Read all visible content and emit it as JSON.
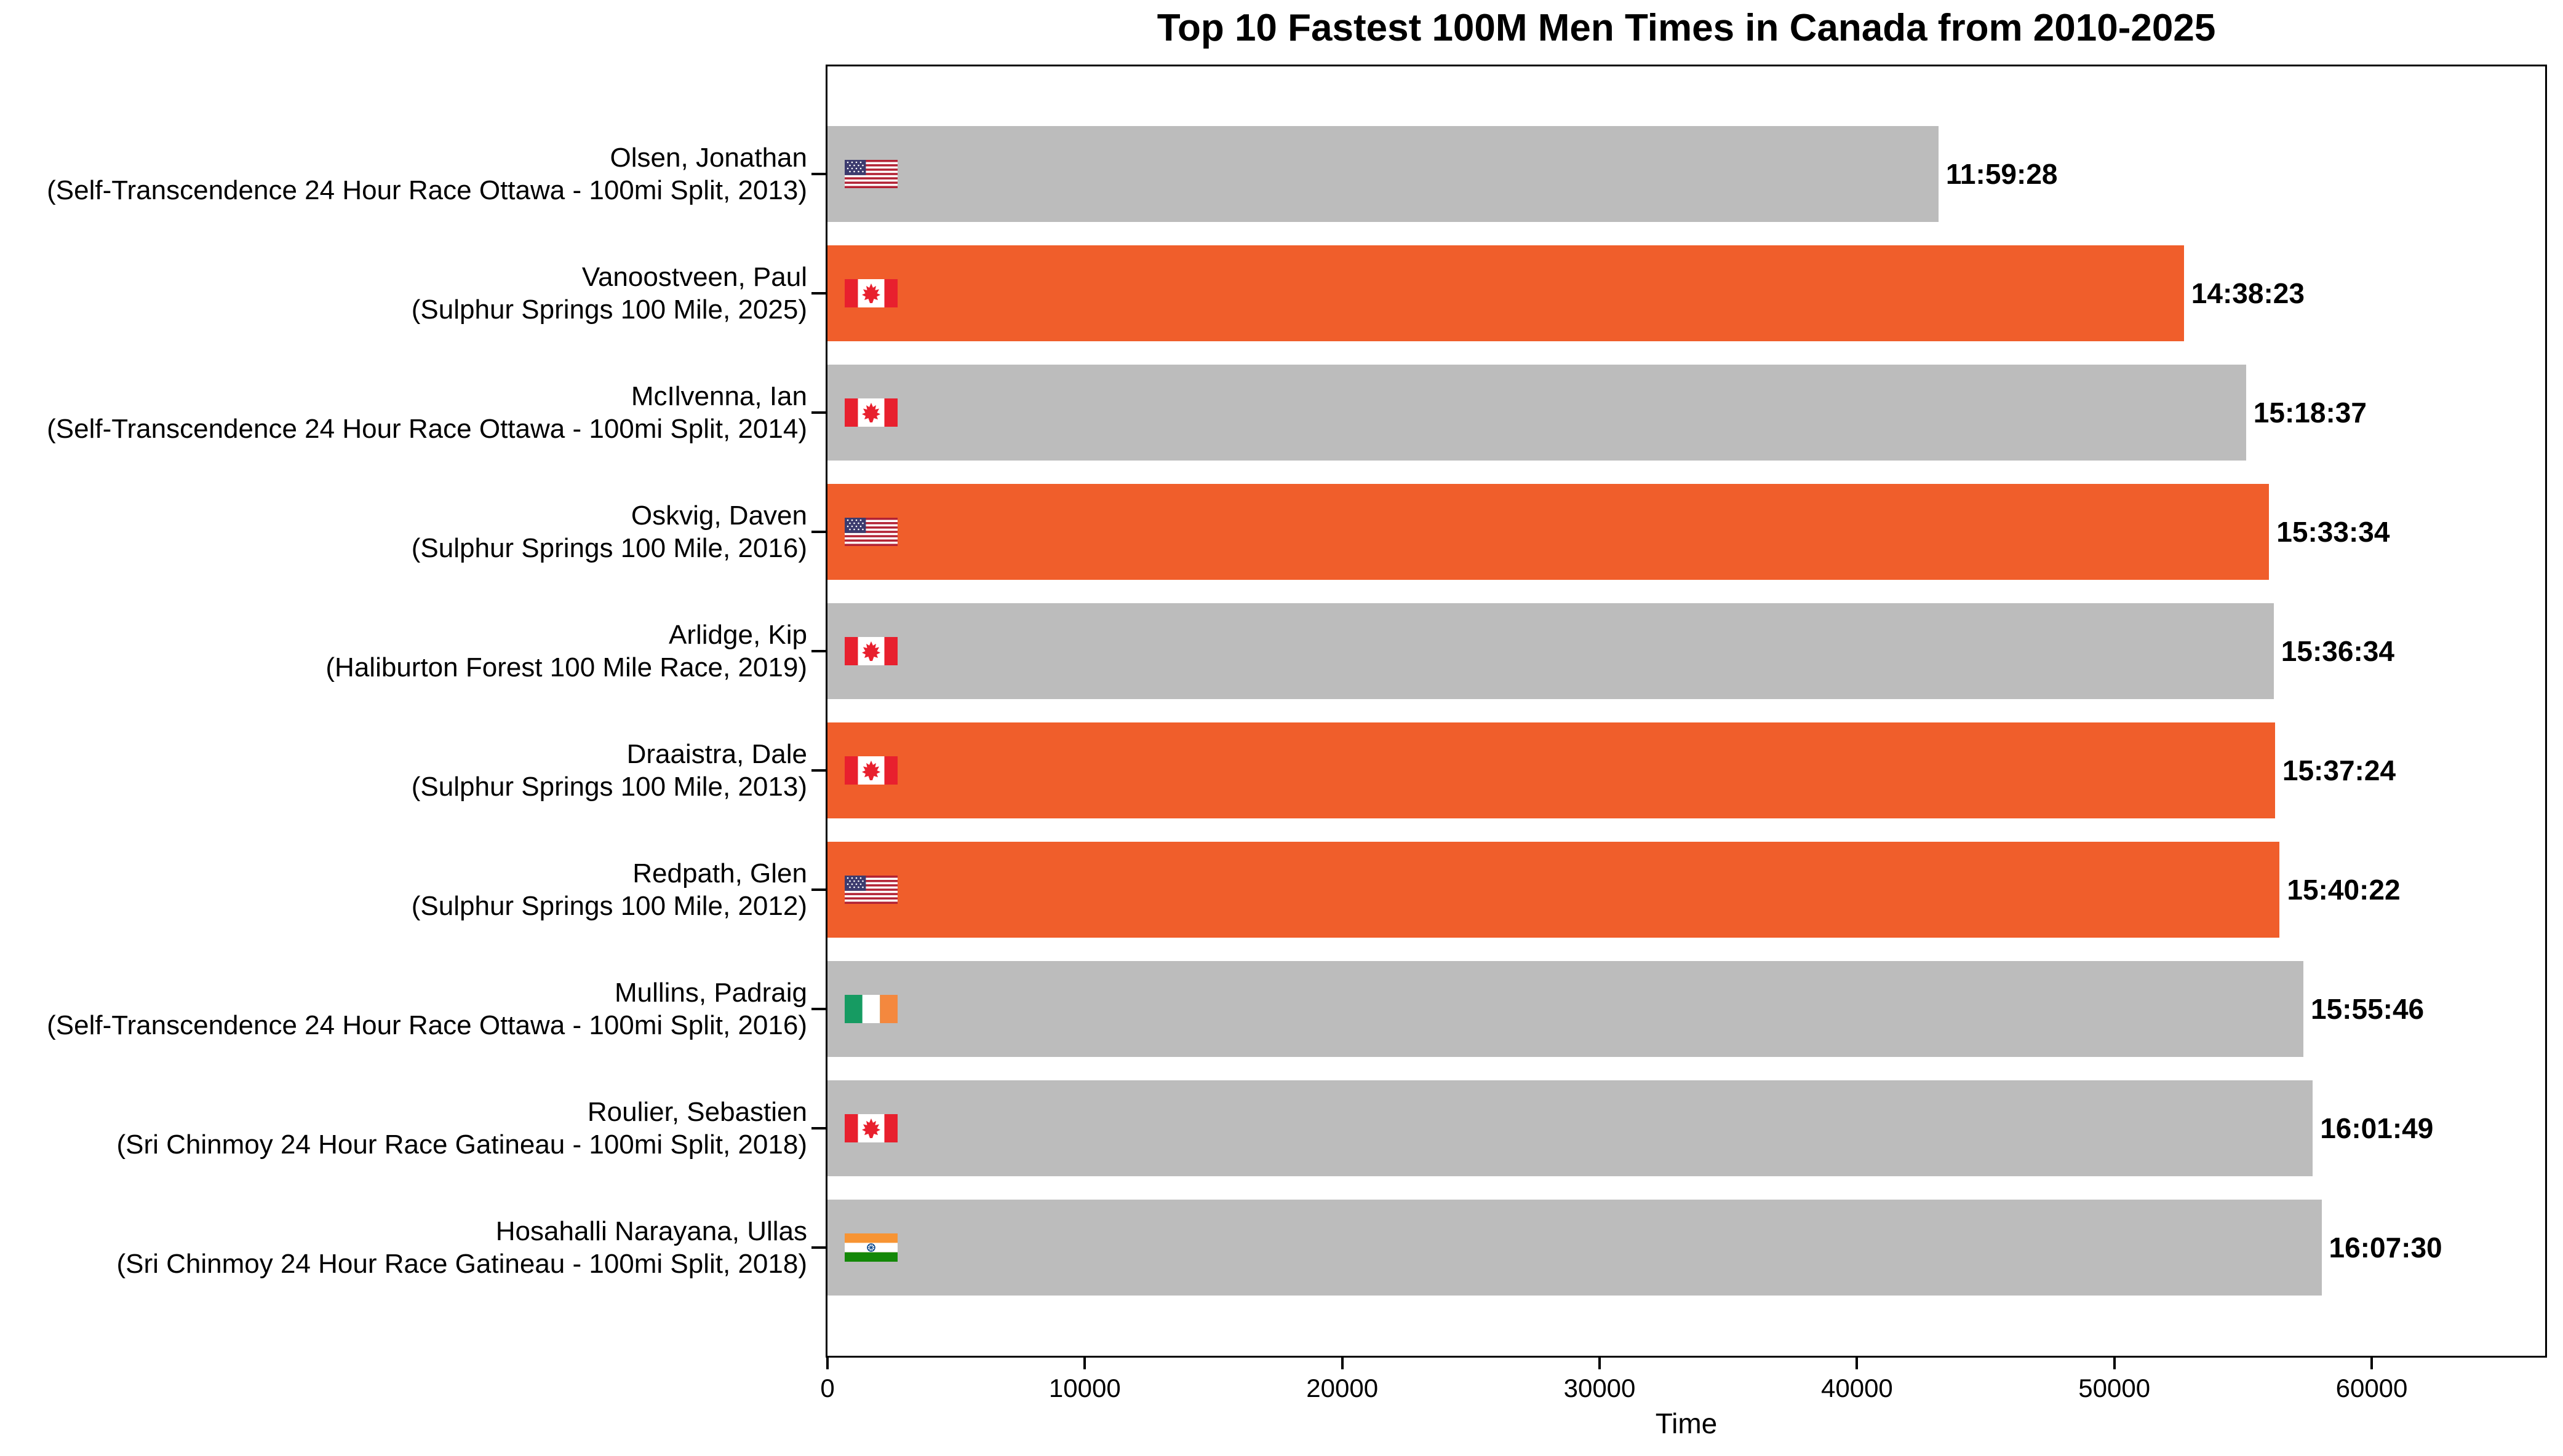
{
  "title": "Top 10 Fastest 100M Men Times in Canada from 2010-2025",
  "chart_data": {
    "type": "bar",
    "orientation": "horizontal",
    "title": "Top 10 Fastest 100M Men Times in Canada from 2010-2025",
    "xlabel": "Time",
    "ylabel": "",
    "xlim": [
      0,
      66740
    ],
    "x_ticks": [
      0,
      10000,
      20000,
      30000,
      40000,
      50000,
      60000
    ],
    "grid": false,
    "legend": "none",
    "colors": {
      "highlight": "#F05E2B",
      "default": "#BCBCBC"
    },
    "bars": [
      {
        "athlete": "Olsen, Jonathan",
        "race": "(Self-Transcendence 24 Hour Race Ottawa - 100mi Split, 2013)",
        "time_label": "11:59:28",
        "value_seconds": 43168,
        "flag": "us",
        "highlighted": false
      },
      {
        "athlete": "Vanoostveen, Paul",
        "race": "(Sulphur Springs 100 Mile, 2025)",
        "time_label": "14:38:23",
        "value_seconds": 52703,
        "flag": "ca",
        "highlighted": true
      },
      {
        "athlete": "McIlvenna, Ian",
        "race": "(Self-Transcendence 24 Hour Race Ottawa - 100mi Split, 2014)",
        "time_label": "15:18:37",
        "value_seconds": 55117,
        "flag": "ca",
        "highlighted": false
      },
      {
        "athlete": "Oskvig, Daven",
        "race": "(Sulphur Springs 100 Mile, 2016)",
        "time_label": "15:33:34",
        "value_seconds": 56014,
        "flag": "us",
        "highlighted": true
      },
      {
        "athlete": "Arlidge, Kip",
        "race": "(Haliburton Forest 100 Mile Race, 2019)",
        "time_label": "15:36:34",
        "value_seconds": 56194,
        "flag": "ca",
        "highlighted": false
      },
      {
        "athlete": "Draaistra, Dale",
        "race": "(Sulphur Springs 100 Mile, 2013)",
        "time_label": "15:37:24",
        "value_seconds": 56244,
        "flag": "ca",
        "highlighted": true
      },
      {
        "athlete": "Redpath, Glen",
        "race": "(Sulphur Springs 100 Mile, 2012)",
        "time_label": "15:40:22",
        "value_seconds": 56422,
        "flag": "us",
        "highlighted": true
      },
      {
        "athlete": "Mullins, Padraig",
        "race": "(Self-Transcendence 24 Hour Race Ottawa - 100mi Split, 2016)",
        "time_label": "15:55:46",
        "value_seconds": 57346,
        "flag": "ie",
        "highlighted": false
      },
      {
        "athlete": "Roulier, Sebastien",
        "race": "(Sri Chinmoy 24 Hour Race Gatineau - 100mi Split, 2018)",
        "time_label": "16:01:49",
        "value_seconds": 57709,
        "flag": "ca",
        "highlighted": false
      },
      {
        "athlete": "Hosahalli Narayana, Ullas",
        "race": "(Sri Chinmoy 24 Hour Race Gatineau - 100mi Split, 2018)",
        "time_label": "16:07:30",
        "value_seconds": 58050,
        "flag": "in",
        "highlighted": false
      }
    ]
  }
}
